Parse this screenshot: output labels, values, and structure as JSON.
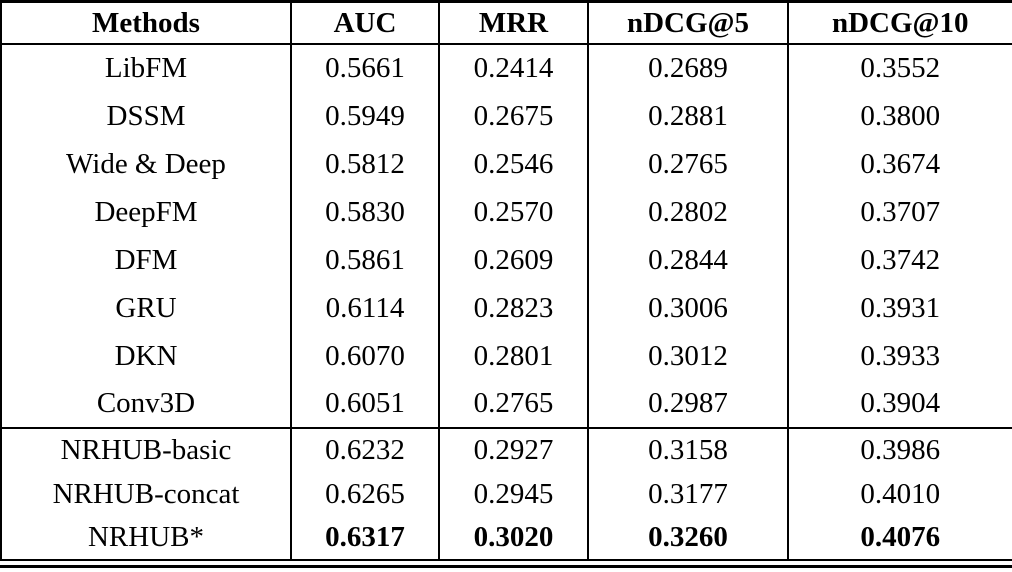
{
  "colors": {
    "border": "#000000",
    "text": "#000000",
    "background": "#ffffff"
  },
  "chart_data": {
    "type": "table",
    "columns": [
      "Methods",
      "AUC",
      "MRR",
      "nDCG@5",
      "nDCG@10"
    ],
    "rows": [
      {
        "method": "LibFM",
        "values": [
          "0.5661",
          "0.2414",
          "0.2689",
          "0.3552"
        ],
        "bold_values": false,
        "separator_above": false
      },
      {
        "method": "DSSM",
        "values": [
          "0.5949",
          "0.2675",
          "0.2881",
          "0.3800"
        ],
        "bold_values": false,
        "separator_above": false
      },
      {
        "method": "Wide & Deep",
        "values": [
          "0.5812",
          "0.2546",
          "0.2765",
          "0.3674"
        ],
        "bold_values": false,
        "separator_above": false
      },
      {
        "method": "DeepFM",
        "values": [
          "0.5830",
          "0.2570",
          "0.2802",
          "0.3707"
        ],
        "bold_values": false,
        "separator_above": false
      },
      {
        "method": "DFM",
        "values": [
          "0.5861",
          "0.2609",
          "0.2844",
          "0.3742"
        ],
        "bold_values": false,
        "separator_above": false
      },
      {
        "method": "GRU",
        "values": [
          "0.6114",
          "0.2823",
          "0.3006",
          "0.3931"
        ],
        "bold_values": false,
        "separator_above": false
      },
      {
        "method": "DKN",
        "values": [
          "0.6070",
          "0.2801",
          "0.3012",
          "0.3933"
        ],
        "bold_values": false,
        "separator_above": false
      },
      {
        "method": "Conv3D",
        "values": [
          "0.6051",
          "0.2765",
          "0.2987",
          "0.3904"
        ],
        "bold_values": false,
        "separator_above": false
      },
      {
        "method": "NRHUB-basic",
        "values": [
          "0.6232",
          "0.2927",
          "0.3158",
          "0.3986"
        ],
        "bold_values": false,
        "separator_above": true
      },
      {
        "method": "NRHUB-concat",
        "values": [
          "0.6265",
          "0.2945",
          "0.3177",
          "0.4010"
        ],
        "bold_values": false,
        "separator_above": false
      },
      {
        "method": "NRHUB*",
        "values": [
          "0.6317",
          "0.3020",
          "0.3260",
          "0.4076"
        ],
        "bold_values": true,
        "separator_above": false
      }
    ]
  }
}
